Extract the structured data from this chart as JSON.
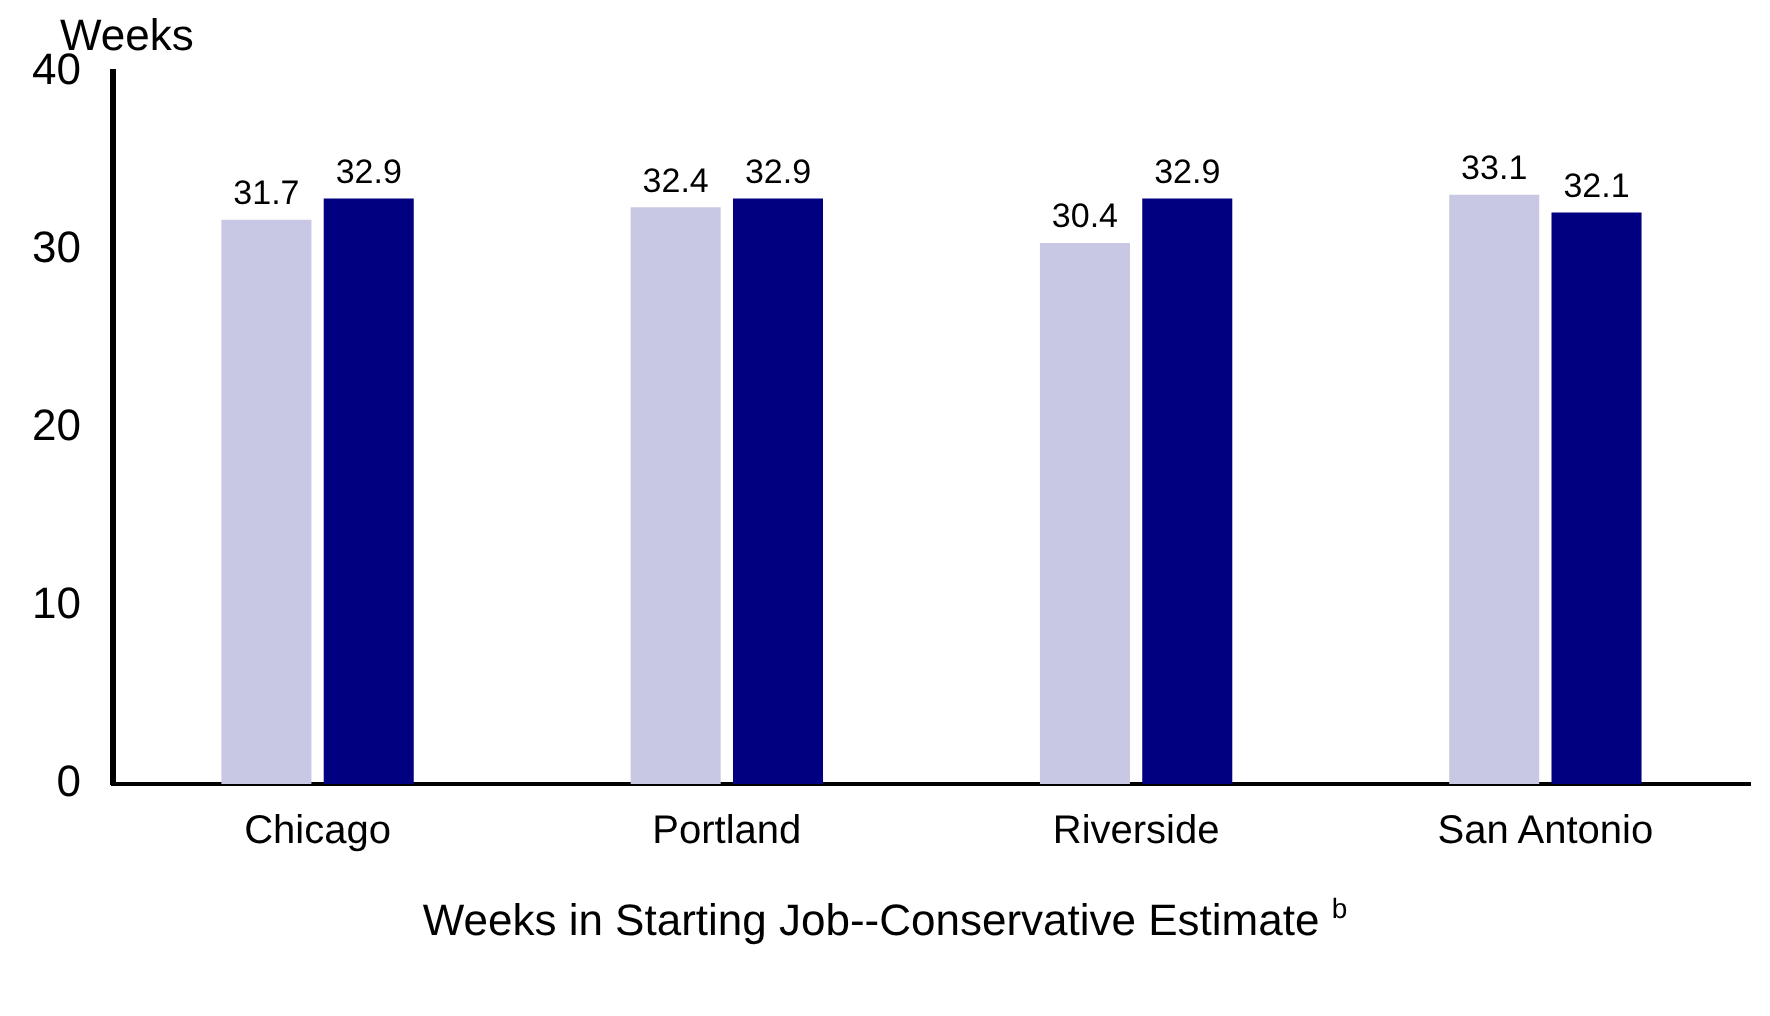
{
  "chart_data": {
    "type": "bar",
    "categories": [
      "Chicago",
      "Portland",
      "Riverside",
      "San Antonio"
    ],
    "series": [
      {
        "color": "#c8c8e4",
        "values": [
          31.7,
          32.4,
          30.4,
          33.1
        ]
      },
      {
        "color": "#000080",
        "values": [
          32.9,
          32.9,
          32.9,
          32.1
        ]
      }
    ],
    "ylabel": "Weeks",
    "xlabel": "Weeks in Starting Job--Conservative Estimate $^{b}$",
    "ylim": [
      0,
      40
    ],
    "yticks": [
      0,
      10,
      20,
      30,
      40
    ],
    "grid": false,
    "legend": false,
    "data_labels": true
  }
}
